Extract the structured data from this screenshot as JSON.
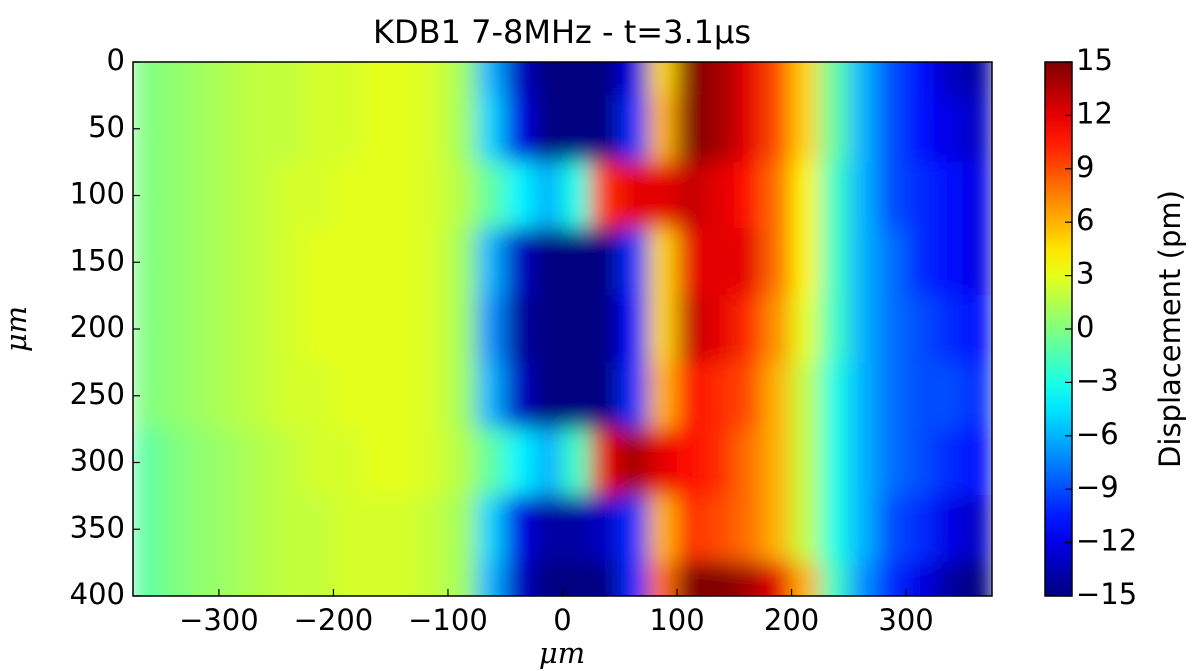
{
  "chart_data": {
    "type": "heatmap",
    "title": "KDB1 7-8MHz - t=3.1μs",
    "x_label": "μm",
    "y_label": "μm",
    "x": [
      -362.5,
      -337.5,
      -312.5,
      -287.5,
      -262.5,
      -237.5,
      -212.5,
      -187.5,
      -162.5,
      -137.5,
      -112.5,
      -87.5,
      -62.5,
      -37.5,
      -12.5,
      12.5,
      37.5,
      62.5,
      87.5,
      112.5,
      137.5,
      162.5,
      187.5,
      212.5,
      237.5,
      262.5,
      287.5,
      312.5,
      337.5,
      362.5
    ],
    "y": [
      0,
      50,
      100,
      150,
      200,
      250,
      300,
      350,
      400
    ],
    "z": [
      [
        0,
        0.5,
        1,
        1.5,
        2,
        2,
        2.5,
        2.5,
        3,
        3,
        2.5,
        1,
        -6,
        -13,
        -15,
        -15,
        -15,
        -12,
        5,
        15,
        14,
        12,
        9,
        5,
        -1,
        -6,
        -9,
        -11,
        -13,
        -14
      ],
      [
        0,
        0.5,
        1,
        1.5,
        2,
        2,
        2.5,
        2.5,
        3,
        3,
        2.5,
        1,
        -5,
        -12,
        -15,
        -15,
        -15,
        -10,
        6,
        15,
        14,
        12,
        9,
        5,
        -1,
        -6,
        -9,
        -11,
        -12,
        -13
      ],
      [
        0,
        0.5,
        1,
        1.5,
        2,
        2.5,
        2.5,
        3,
        3,
        3,
        2.5,
        1.5,
        -1,
        -4,
        -6,
        -3,
        10,
        12,
        12,
        13,
        12,
        11,
        8,
        4,
        -2,
        -6,
        -9,
        -10,
        -11,
        -12
      ],
      [
        0,
        0.5,
        1,
        1.5,
        2,
        2.5,
        3,
        3,
        3,
        3,
        2.5,
        1,
        -6,
        -13,
        -15,
        -15,
        -15,
        -10,
        5,
        12,
        12,
        12,
        8,
        4,
        -2,
        -6,
        -8,
        -10,
        -11,
        -12
      ],
      [
        0,
        0.5,
        1,
        1.5,
        2,
        2.5,
        3,
        3,
        3,
        3,
        2.5,
        1,
        -7,
        -14,
        -15,
        -15,
        -15,
        -11,
        5,
        13,
        12,
        10,
        7,
        3,
        -2,
        -6,
        -8,
        -9,
        -10,
        -11
      ],
      [
        0,
        0.5,
        1,
        1.5,
        2,
        2.5,
        2.5,
        3,
        3,
        3,
        2.5,
        1,
        -6,
        -13,
        -15,
        -15,
        -15,
        -10,
        6,
        11,
        10,
        9,
        6,
        2,
        -3,
        -6,
        -8,
        -9,
        -9,
        -10
      ],
      [
        -1,
        0,
        0.5,
        1,
        1.5,
        2,
        2.5,
        2.5,
        3,
        3,
        2.5,
        1.5,
        -1,
        -4,
        -6,
        -2,
        12,
        14,
        12,
        11,
        10,
        8,
        6,
        2,
        -3,
        -6,
        -8,
        -9,
        -10,
        -11
      ],
      [
        -1,
        0,
        0.5,
        1,
        1.5,
        2,
        2,
        2.5,
        2.5,
        2.5,
        2,
        1,
        -5,
        -12,
        -14,
        -14,
        -13,
        -10,
        6,
        10,
        9,
        8,
        6,
        2,
        -3,
        -6,
        -9,
        -10,
        -12,
        -13
      ],
      [
        -1,
        0,
        0.5,
        1,
        1.5,
        2,
        2,
        2.5,
        2.5,
        2.5,
        2,
        1,
        -6,
        -13,
        -15,
        -15,
        -15,
        -10,
        8,
        15,
        15,
        14,
        12,
        6,
        -2,
        -7,
        -10,
        -12,
        -14,
        -15
      ]
    ],
    "xlim": [
      -375,
      375
    ],
    "ylim": [
      400,
      0
    ],
    "xticks": [
      {
        "value": -300,
        "label": "−300"
      },
      {
        "value": -200,
        "label": "−200"
      },
      {
        "value": -100,
        "label": "−100"
      },
      0,
      100,
      200,
      300
    ],
    "yticks": [
      0,
      50,
      100,
      150,
      200,
      250,
      300,
      350,
      400
    ],
    "colormap": "jet",
    "colorbar": {
      "label": "Displacement (pm)",
      "lim": [
        -15,
        15
      ],
      "ticks": [
        {
          "value": -15,
          "label": "−15"
        },
        {
          "value": -12,
          "label": "−12"
        },
        {
          "value": -9,
          "label": "−9"
        },
        {
          "value": -6,
          "label": "−6"
        },
        {
          "value": -3,
          "label": "−3"
        },
        0,
        3,
        6,
        9,
        12,
        15
      ]
    }
  }
}
